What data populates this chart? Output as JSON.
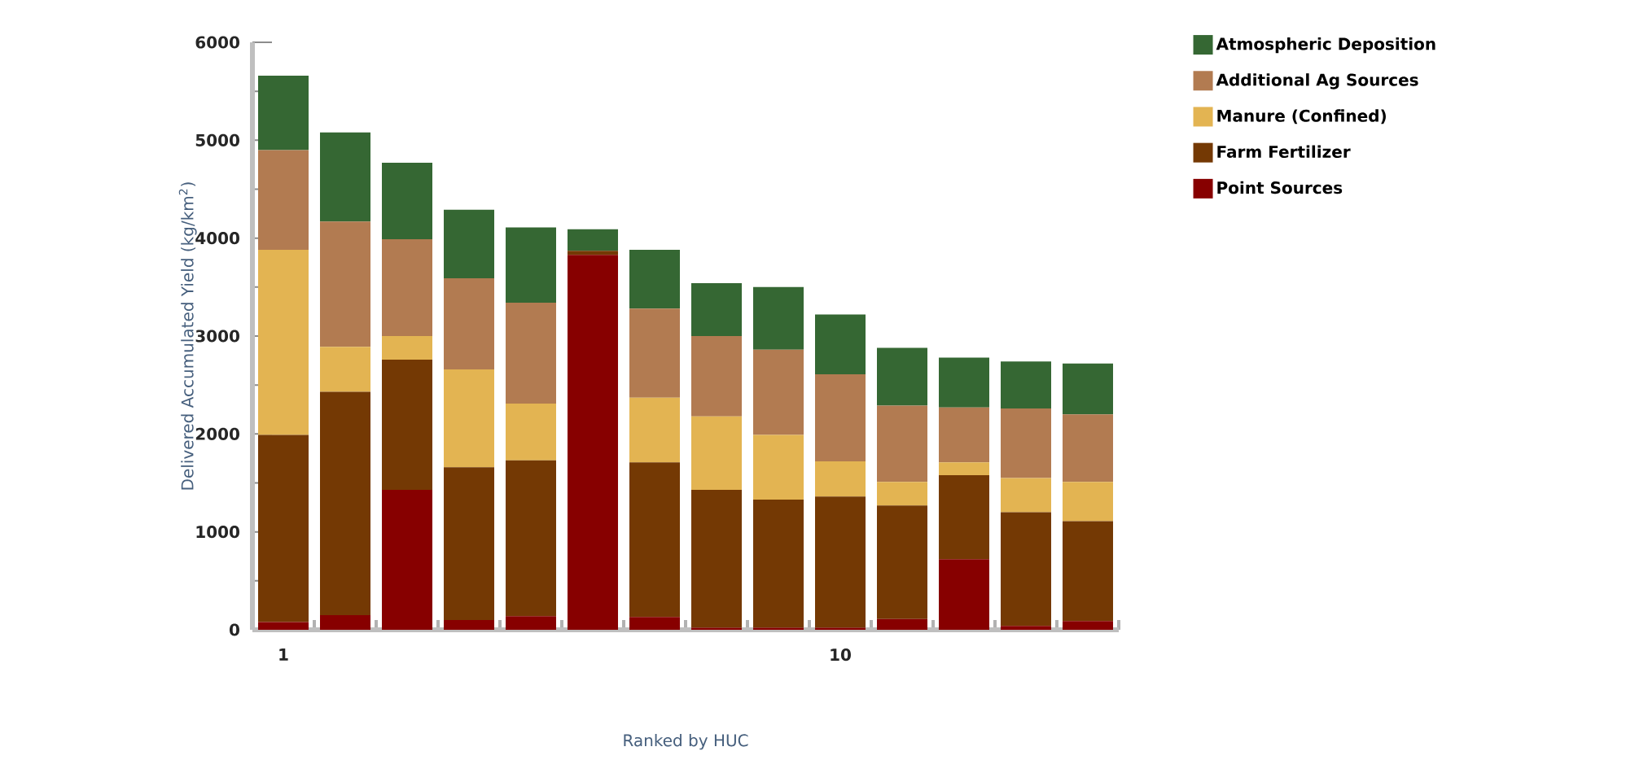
{
  "chart_data": {
    "type": "bar",
    "stacked": true,
    "xlabel": "Ranked by HUC",
    "ylabel": "Delivered Accumulated Yield (kg/km$^{2}$)",
    "categories": [
      "1",
      null,
      null,
      null,
      null,
      null,
      null,
      null,
      null,
      "10",
      null,
      null,
      null,
      null
    ],
    "ylim": [
      0,
      6000
    ],
    "yticks": [
      0,
      1000,
      2000,
      3000,
      4000,
      5000,
      6000
    ],
    "grid": false,
    "legend": "top right",
    "series": [
      {
        "name": "Point Sources",
        "color": "#870000",
        "values": [
          80,
          150,
          1430,
          100,
          140,
          3830,
          130,
          20,
          20,
          20,
          110,
          720,
          40,
          90
        ]
      },
      {
        "name": "Farm Fertilizer",
        "color": "#743904",
        "values": [
          1910,
          2280,
          1330,
          1560,
          1590,
          40,
          1580,
          1410,
          1310,
          1340,
          1160,
          860,
          1160,
          1020
        ]
      },
      {
        "name": "Manure (Confined)",
        "color": "#e3b452",
        "values": [
          1890,
          460,
          240,
          1000,
          580,
          0,
          660,
          750,
          660,
          360,
          240,
          130,
          350,
          400
        ]
      },
      {
        "name": "Additional Ag Sources",
        "color": "#b27b51",
        "values": [
          1020,
          1280,
          990,
          930,
          1030,
          0,
          910,
          820,
          870,
          890,
          780,
          560,
          710,
          690
        ]
      },
      {
        "name": "Atmospheric Deposition",
        "color": "#356733",
        "values": [
          760,
          910,
          780,
          700,
          770,
          220,
          600,
          540,
          640,
          610,
          590,
          510,
          480,
          520
        ]
      }
    ]
  }
}
